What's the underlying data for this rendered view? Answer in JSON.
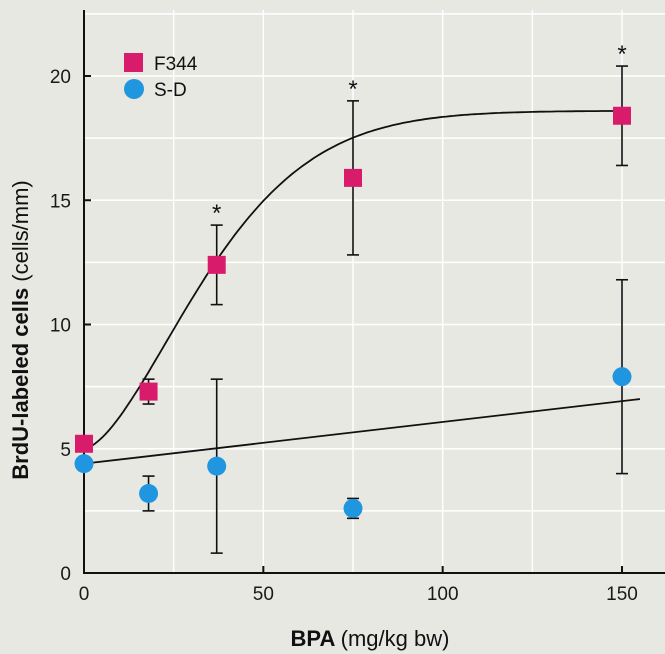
{
  "chart_data": {
    "type": "scatter",
    "xlabel": "BPA",
    "xlabel_unit": "(mg/kg bw)",
    "ylabel": "BrdU-labeled cells",
    "ylabel_unit": "(cells/mm)",
    "xlim": [
      0,
      150
    ],
    "ylim": [
      0,
      20
    ],
    "x_ticks": [
      0,
      50,
      100,
      150
    ],
    "y_ticks": [
      0,
      5,
      10,
      15,
      20
    ],
    "grid": true,
    "legend_position": "top-left",
    "colors": {
      "F344": "#d81b6a",
      "S-D": "#2196e0",
      "background": "#e8e8e3",
      "axis": "#111111"
    },
    "series": [
      {
        "name": "F344",
        "marker": "square",
        "x": [
          0,
          18,
          37,
          75,
          150
        ],
        "y": [
          5.2,
          7.3,
          12.4,
          15.9,
          18.4
        ],
        "err": [
          0.3,
          0.5,
          1.6,
          3.1,
          2.0
        ],
        "significant": [
          false,
          false,
          true,
          true,
          true
        ],
        "fit": "sigmoid"
      },
      {
        "name": "S-D",
        "marker": "circle",
        "x": [
          0,
          18,
          37,
          75,
          150
        ],
        "y": [
          4.4,
          3.2,
          4.3,
          2.6,
          7.9
        ],
        "err": [
          0,
          0.7,
          3.5,
          0.4,
          3.9
        ],
        "significant": [
          false,
          false,
          false,
          false,
          false
        ],
        "fit": "linear",
        "fit_line": {
          "x": [
            0,
            155
          ],
          "y": [
            4.4,
            7.0
          ]
        }
      }
    ],
    "significance_mark": "*"
  }
}
